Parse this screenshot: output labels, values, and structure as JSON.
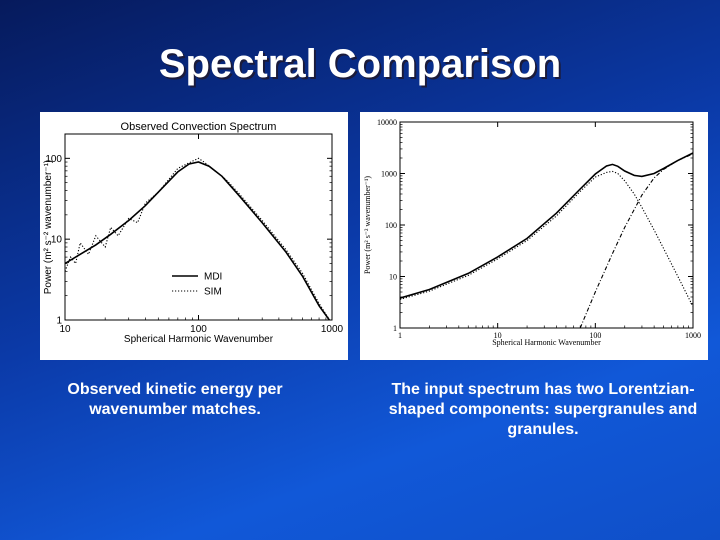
{
  "slide": {
    "title": "Spectral Comparison",
    "caption_left": "Observed kinetic energy per wavenumber matches.",
    "caption_right": "The input spectrum has two Lorentzian-shaped components: supergranules and granules.",
    "colors": {
      "background_top": "#061a5c",
      "background_bottom": "#1158d8",
      "text": "#ffffff"
    }
  },
  "chart_data": [
    {
      "type": "line",
      "title": "Observed Convection Spectrum",
      "xlabel": "Spherical Harmonic Wavenumber",
      "ylabel": "Power (m² s⁻² wavenumber⁻¹)",
      "xscale": "log",
      "yscale": "log",
      "xlim": [
        10,
        1000
      ],
      "ylim": [
        1,
        200
      ],
      "x_ticks": [
        "10",
        "100",
        "1000"
      ],
      "y_ticks": [
        "1",
        "10",
        "100"
      ],
      "legend": "lower-right",
      "grid": false,
      "series": [
        {
          "name": "MDI",
          "style": "solid",
          "x": [
            10,
            13,
            17,
            22,
            30,
            40,
            55,
            70,
            85,
            100,
            120,
            150,
            200,
            300,
            450,
            600,
            800,
            1000
          ],
          "y": [
            5,
            6.5,
            8.5,
            11.5,
            17,
            26,
            45,
            68,
            85,
            90,
            80,
            60,
            35,
            16,
            7,
            3.5,
            1.5,
            0.9
          ]
        },
        {
          "name": "SIM",
          "style": "dotted",
          "x": [
            10,
            11,
            12,
            13,
            15,
            17,
            20,
            22,
            25,
            30,
            35,
            40,
            50,
            60,
            70,
            85,
            100,
            110,
            130,
            160,
            200,
            300,
            450,
            600,
            800,
            1000
          ],
          "y": [
            4,
            6,
            5,
            9,
            6.5,
            11,
            8,
            14,
            11,
            18,
            16,
            28,
            38,
            55,
            75,
            88,
            100,
            90,
            72,
            55,
            37,
            17,
            7.5,
            3.8,
            1.6,
            0.9
          ]
        }
      ]
    },
    {
      "type": "line",
      "title": "",
      "xlabel": "Spherical Harmonic Wavenumber",
      "ylabel": "Power (m² s⁻² wavenumber⁻¹)",
      "xscale": "log",
      "yscale": "log",
      "xlim": [
        1,
        1000
      ],
      "ylim": [
        1,
        10000
      ],
      "x_ticks": [
        "1",
        "10",
        "100",
        "1000"
      ],
      "y_ticks": [
        "1",
        "10",
        "100",
        "1000",
        "10000"
      ],
      "grid": false,
      "series": [
        {
          "name": "",
          "style": "solid",
          "x": [
            1,
            2,
            5,
            10,
            20,
            40,
            70,
            100,
            130,
            150,
            170,
            200,
            250,
            300,
            400,
            500,
            700,
            1000
          ],
          "y": [
            3.8,
            5.6,
            11.5,
            24,
            55,
            170,
            500,
            980,
            1400,
            1500,
            1380,
            1120,
            920,
            880,
            1000,
            1250,
            1800,
            2500
          ]
        },
        {
          "name": "",
          "style": "dotted",
          "x": [
            1,
            2,
            5,
            10,
            20,
            40,
            70,
            100,
            130,
            150,
            170,
            200,
            250,
            300,
            400,
            500,
            700,
            1000
          ],
          "y": [
            3.6,
            5.2,
            10.5,
            22,
            50,
            150,
            450,
            850,
            1050,
            1100,
            1000,
            720,
            400,
            220,
            80,
            35,
            10,
            2.6
          ]
        },
        {
          "name": "",
          "style": "dash-dot",
          "x": [
            70,
            100,
            150,
            200,
            300,
            400,
            500,
            700,
            1000
          ],
          "y": [
            1,
            5,
            28,
            90,
            380,
            820,
            1200,
            1800,
            2400
          ]
        }
      ]
    }
  ]
}
